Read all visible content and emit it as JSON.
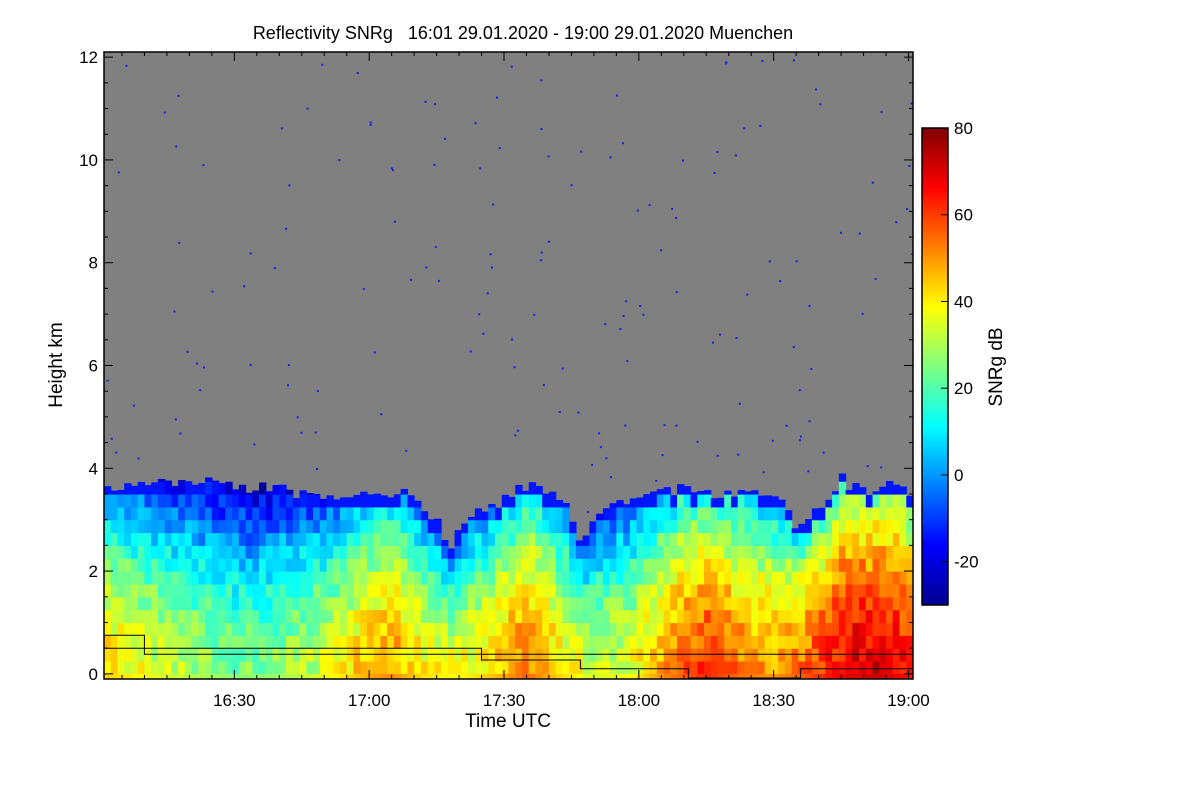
{
  "chart_data": {
    "type": "heatmap",
    "title": "Reflectivity SNRg   16:01 29.01.2020 - 19:00 29.01.2020 Muenchen",
    "xlabel": "Time UTC",
    "ylabel": "Height km",
    "x_range_minutes_utc": [
      961,
      1141
    ],
    "y_range_km": [
      -0.1,
      12.1
    ],
    "x_ticks": [
      {
        "minute": 990,
        "label": "16:30"
      },
      {
        "minute": 1020,
        "label": "17:00"
      },
      {
        "minute": 1050,
        "label": "17:30"
      },
      {
        "minute": 1080,
        "label": "18:00"
      },
      {
        "minute": 1110,
        "label": "18:30"
      },
      {
        "minute": 1140,
        "label": "19:00"
      }
    ],
    "y_ticks": [
      {
        "value": 0,
        "label": "0"
      },
      {
        "value": 2,
        "label": "2"
      },
      {
        "value": 4,
        "label": "4"
      },
      {
        "value": 6,
        "label": "6"
      },
      {
        "value": 8,
        "label": "8"
      },
      {
        "value": 10,
        "label": "10"
      },
      {
        "value": 12,
        "label": "12"
      }
    ],
    "colorbar": {
      "label": "SNRg dB",
      "range": [
        -30,
        80
      ],
      "ticks": [
        {
          "value": 80,
          "label": "80"
        },
        {
          "value": 60,
          "label": "60"
        },
        {
          "value": 40,
          "label": "40"
        },
        {
          "value": 20,
          "label": "20"
        },
        {
          "value": 0,
          "label": "0"
        },
        {
          "value": -20,
          "label": "-20"
        }
      ]
    },
    "no_signal_color": "#808080",
    "cloud_top_km": [
      {
        "minute": 961,
        "top": 3.6
      },
      {
        "minute": 970,
        "top": 3.75
      },
      {
        "minute": 980,
        "top": 3.75
      },
      {
        "minute": 990,
        "top": 3.65
      },
      {
        "minute": 1000,
        "top": 3.6
      },
      {
        "minute": 1010,
        "top": 3.45
      },
      {
        "minute": 1020,
        "top": 3.5
      },
      {
        "minute": 1030,
        "top": 3.5
      },
      {
        "minute": 1035,
        "top": 3.0
      },
      {
        "minute": 1038,
        "top": 2.5
      },
      {
        "minute": 1042,
        "top": 3.1
      },
      {
        "minute": 1050,
        "top": 3.4
      },
      {
        "minute": 1056,
        "top": 3.7
      },
      {
        "minute": 1060,
        "top": 3.5
      },
      {
        "minute": 1064,
        "top": 3.2
      },
      {
        "minute": 1067,
        "top": 2.6
      },
      {
        "minute": 1070,
        "top": 2.9
      },
      {
        "minute": 1075,
        "top": 3.3
      },
      {
        "minute": 1080,
        "top": 3.4
      },
      {
        "minute": 1090,
        "top": 3.6
      },
      {
        "minute": 1100,
        "top": 3.5
      },
      {
        "minute": 1110,
        "top": 3.5
      },
      {
        "minute": 1116,
        "top": 2.8
      },
      {
        "minute": 1120,
        "top": 3.2
      },
      {
        "minute": 1125,
        "top": 3.8
      },
      {
        "minute": 1130,
        "top": 3.5
      },
      {
        "minute": 1135,
        "top": 3.8
      },
      {
        "minute": 1141,
        "top": 3.5
      }
    ],
    "intensity_dB": [
      {
        "minute": 961,
        "value": 30
      },
      {
        "minute": 975,
        "value": 20
      },
      {
        "minute": 990,
        "value": 12
      },
      {
        "minute": 1000,
        "value": 14
      },
      {
        "minute": 1010,
        "value": 22
      },
      {
        "minute": 1020,
        "value": 34
      },
      {
        "minute": 1025,
        "value": 38
      },
      {
        "minute": 1032,
        "value": 28
      },
      {
        "minute": 1040,
        "value": 24
      },
      {
        "minute": 1048,
        "value": 32
      },
      {
        "minute": 1055,
        "value": 42
      },
      {
        "minute": 1062,
        "value": 30
      },
      {
        "minute": 1070,
        "value": 20
      },
      {
        "minute": 1078,
        "value": 24
      },
      {
        "minute": 1086,
        "value": 38
      },
      {
        "minute": 1095,
        "value": 48
      },
      {
        "minute": 1103,
        "value": 40
      },
      {
        "minute": 1110,
        "value": 36
      },
      {
        "minute": 1118,
        "value": 44
      },
      {
        "minute": 1126,
        "value": 56
      },
      {
        "minute": 1134,
        "value": 58
      },
      {
        "minute": 1141,
        "value": 50
      }
    ],
    "overlay_lines": [
      {
        "name": "upper-step-line",
        "points": [
          [
            961,
            0.75
          ],
          [
            970,
            0.75
          ],
          [
            970,
            0.38
          ],
          [
            1141,
            0.38
          ]
        ]
      },
      {
        "name": "lower-step-line",
        "points": [
          [
            961,
            0.5
          ],
          [
            1045,
            0.5
          ],
          [
            1045,
            0.27
          ],
          [
            1067,
            0.27
          ],
          [
            1067,
            0.1
          ],
          [
            1091,
            0.1
          ],
          [
            1091,
            -0.08
          ],
          [
            1116,
            -0.08
          ],
          [
            1116,
            0.1
          ],
          [
            1141,
            0.1
          ]
        ]
      }
    ]
  }
}
